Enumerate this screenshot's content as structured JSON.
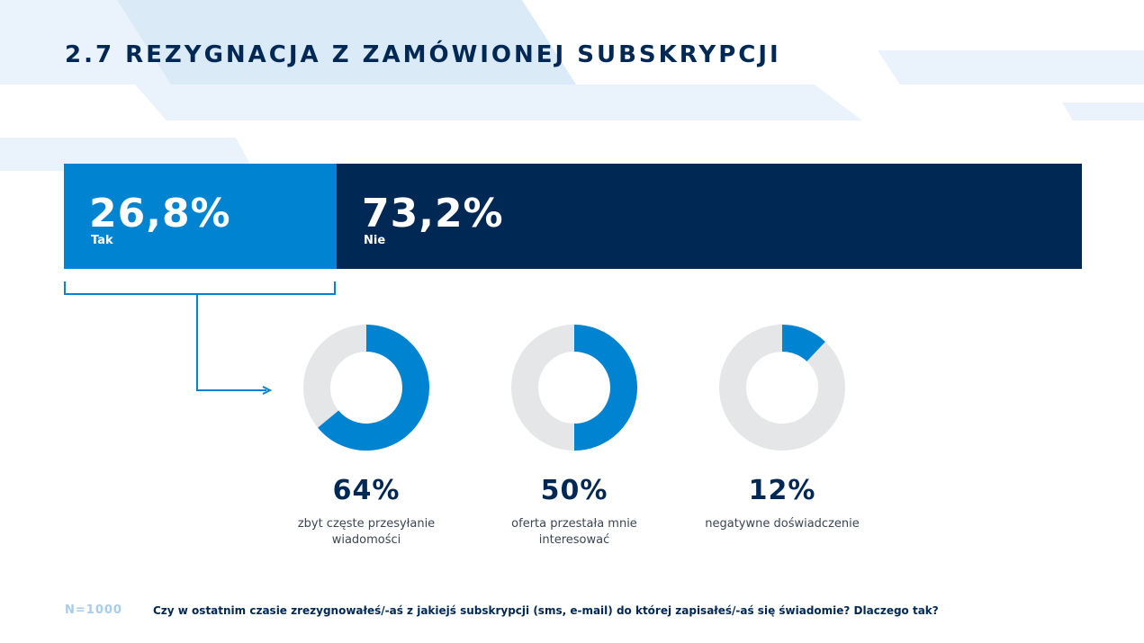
{
  "title": "2.7 Rezygnacja z zamówionej subskrypcji",
  "colors": {
    "primary": "#0083d0",
    "dark": "#002855",
    "track": "#e5e6e8",
    "bg_shape_light": "#eaf3fb",
    "bg_shape_mid": "#dbeaf7",
    "footer_n": "#a8cdea"
  },
  "chart_data": [
    {
      "type": "bar",
      "stacked": true,
      "orientation": "horizontal",
      "categories": [
        "Tak",
        "Nie"
      ],
      "values": [
        26.8,
        73.2
      ],
      "value_labels": [
        "26,8%",
        "73,2%"
      ],
      "unit": "%"
    },
    {
      "type": "pie",
      "variant": "donut",
      "items": [
        {
          "value": 64,
          "value_label": "64%",
          "label_lines": [
            "zbyt częste przesyłanie",
            "wiadomości"
          ]
        },
        {
          "value": 50,
          "value_label": "50%",
          "label_lines": [
            "oferta przestała mnie",
            "interesować"
          ]
        },
        {
          "value": 12,
          "value_label": "12%",
          "label_lines": [
            "negatywne doświadczenie"
          ]
        }
      ]
    }
  ],
  "footer": {
    "n": "N=1000",
    "question": "Czy w ostatnim czasie zrezygnowałeś/-aś z jakiejś subskrypcji (sms, e-mail) do której zapisałeś/-aś się świadomie? Dlaczego tak?"
  }
}
